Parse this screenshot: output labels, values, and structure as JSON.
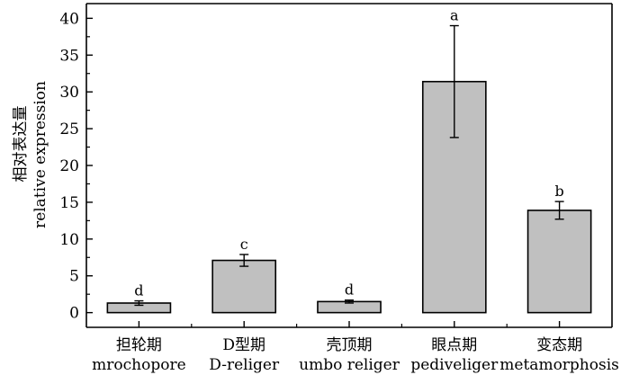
{
  "chart_data": {
    "type": "bar",
    "categories": [
      {
        "zh": "担轮期",
        "en": "mrochopore"
      },
      {
        "zh": "D型期",
        "en": "D-religer"
      },
      {
        "zh": "壳顶期",
        "en": "umbo religer"
      },
      {
        "zh": "眼点期",
        "en": "pediveliger"
      },
      {
        "zh": "变态期",
        "en": "metamorphosis"
      }
    ],
    "values": [
      1.3,
      7.1,
      1.5,
      31.4,
      13.9
    ],
    "errors": [
      0.3,
      0.8,
      0.2,
      7.6,
      1.2
    ],
    "significance": [
      "d",
      "c",
      "d",
      "a",
      "b"
    ],
    "ylabel_zh": "相对表达量",
    "ylabel_en": "relative expression",
    "ylim": [
      -2,
      42
    ],
    "yticks": [
      0,
      5,
      10,
      15,
      20,
      25,
      30,
      35,
      40
    ],
    "bar_color": "#c0c0c0",
    "edge_color": "#000000"
  }
}
